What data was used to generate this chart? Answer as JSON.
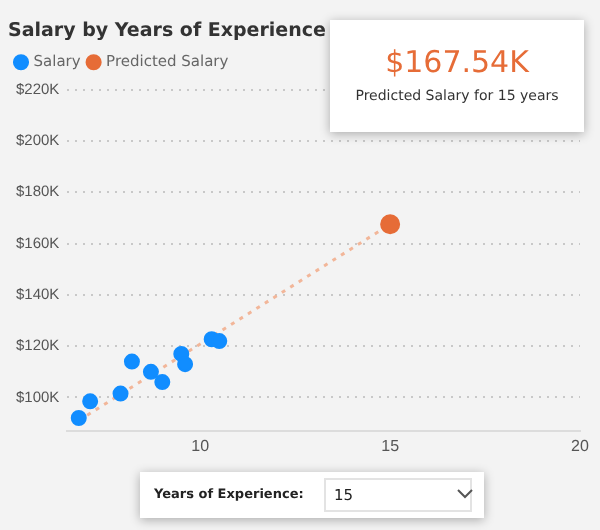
{
  "chart_data": {
    "type": "scatter",
    "title": "Salary by Years of Experience",
    "xlim": [
      6.5,
      20
    ],
    "xticks": [
      10,
      15,
      20
    ],
    "ylim": [
      87,
      220
    ],
    "yticks": [
      {
        "value": 100,
        "label": "$100K"
      },
      {
        "value": 120,
        "label": "$120K"
      },
      {
        "value": 140,
        "label": "$140K"
      },
      {
        "value": 160,
        "label": "$160K"
      },
      {
        "value": 180,
        "label": "$180K"
      },
      {
        "value": 200,
        "label": "$200K"
      },
      {
        "value": 220,
        "label": "$220K"
      }
    ],
    "grid": "y",
    "legend": "top left",
    "marker": "circle",
    "series": [
      {
        "name": "Salary",
        "color": "#118dff",
        "x": [
          6.8,
          7.1,
          7.9,
          8.2,
          8.7,
          9.0,
          9.5,
          9.6,
          10.3,
          10.5
        ],
        "values": [
          92,
          98.5,
          101.5,
          114,
          110,
          106,
          117,
          113,
          122.7,
          122
        ]
      },
      {
        "name": "Predicted Salary",
        "color": "#e66c37",
        "x": [
          15
        ],
        "values": [
          167.54
        ]
      },
      {
        "type": "line",
        "color": "#f2b699",
        "x": [
          6.8,
          15
        ],
        "values": [
          91,
          167.54
        ],
        "line_style": "dotted",
        "marker": "none"
      }
    ],
    "annotations": [
      "$167.54K",
      "Predicted Salary for 15 years",
      "Years of Experience:",
      "15"
    ]
  }
}
